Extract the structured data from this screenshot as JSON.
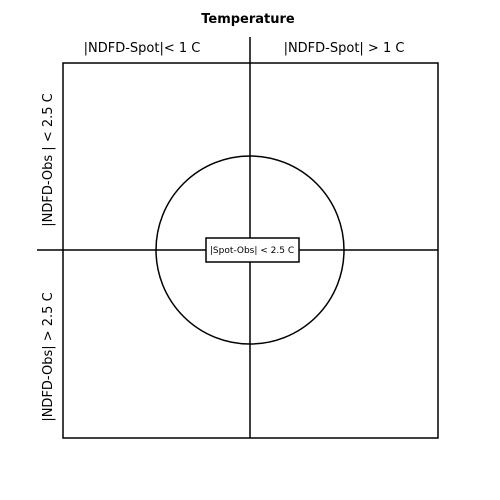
{
  "diagram": {
    "title": "Temperature",
    "top_left_label": "|NDFD-Spot|< 1 C",
    "top_right_label": "|NDFD-Spot| > 1 C",
    "left_top_label": "|NDFD-Obs | < 2.5 C",
    "left_bottom_label": "|NDFD-Obs| > 2.5 C",
    "center_label": "|Spot-Obs| < 2.5 C",
    "colors": {
      "line": "#000000",
      "background": "#ffffff"
    }
  }
}
